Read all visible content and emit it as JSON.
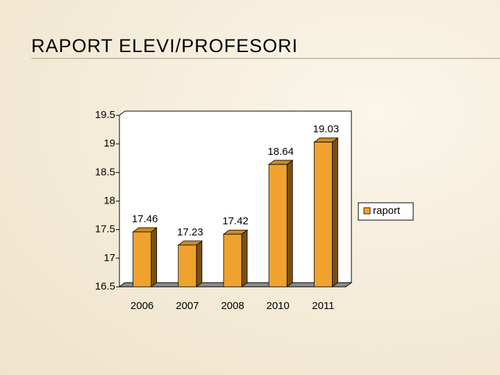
{
  "chart_data": {
    "type": "bar",
    "title": "RAPORT ELEVI/PROFESORI",
    "categories": [
      "2006",
      "2007",
      "2008",
      "2010",
      "2011"
    ],
    "series": [
      {
        "name": "raport",
        "color": "#f0a22e",
        "values": [
          17.46,
          17.23,
          17.42,
          18.64,
          19.03
        ]
      }
    ],
    "ylim": [
      16.5,
      19.5
    ],
    "yticks": [
      16.5,
      17,
      17.5,
      18,
      18.5,
      19,
      19.5
    ],
    "legend": "right"
  }
}
